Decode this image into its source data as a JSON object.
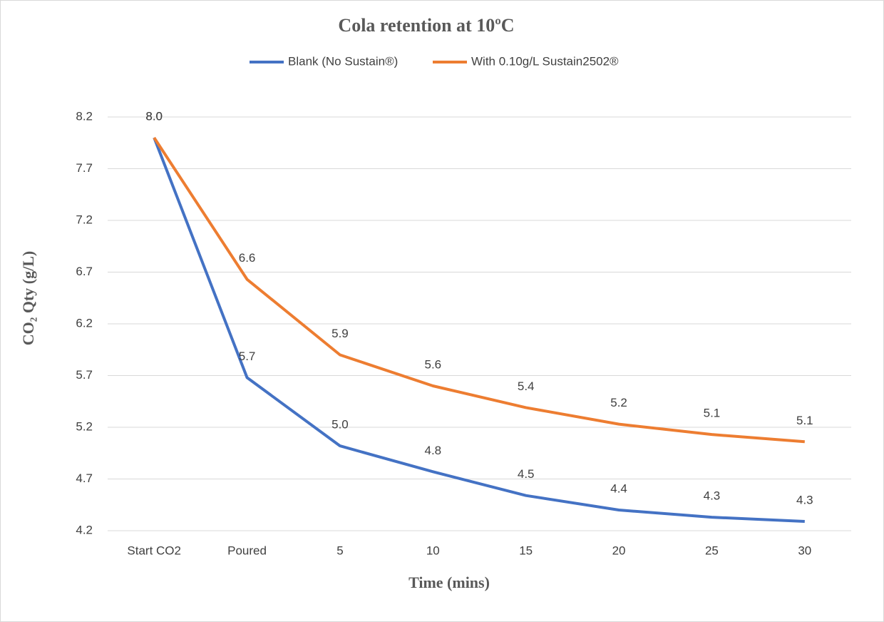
{
  "chart_data": {
    "type": "line",
    "title": "Cola retention at 10ºC",
    "x_label": "Time (mins)",
    "y_label": "CO₂ Qty (g/L)",
    "categories": [
      "Start CO2",
      "Poured",
      "5",
      "10",
      "15",
      "20",
      "25",
      "30"
    ],
    "series": [
      {
        "name": "Blank (No Sustain®)",
        "color": "#4472c4",
        "values": [
          8.0,
          5.68,
          5.02,
          4.77,
          4.54,
          4.4,
          4.33,
          4.29
        ],
        "value_labels": [
          "8.0",
          "5.7",
          "5.0",
          "4.8",
          "4.5",
          "4.4",
          "4.3",
          "4.3"
        ]
      },
      {
        "name": "With 0.10g/L Sustain2502®",
        "color": "#ed7d31",
        "values": [
          8.0,
          6.63,
          5.9,
          5.6,
          5.39,
          5.23,
          5.13,
          5.06
        ],
        "value_labels": [
          "8.0",
          "6.6",
          "5.9",
          "5.6",
          "5.4",
          "5.2",
          "5.1",
          "5.1"
        ]
      }
    ],
    "ylim": [
      4.2,
      8.2
    ],
    "yticks": [
      4.2,
      4.7,
      5.2,
      5.7,
      6.2,
      6.7,
      7.2,
      7.7,
      8.2
    ],
    "grid": true,
    "legend": "top"
  }
}
